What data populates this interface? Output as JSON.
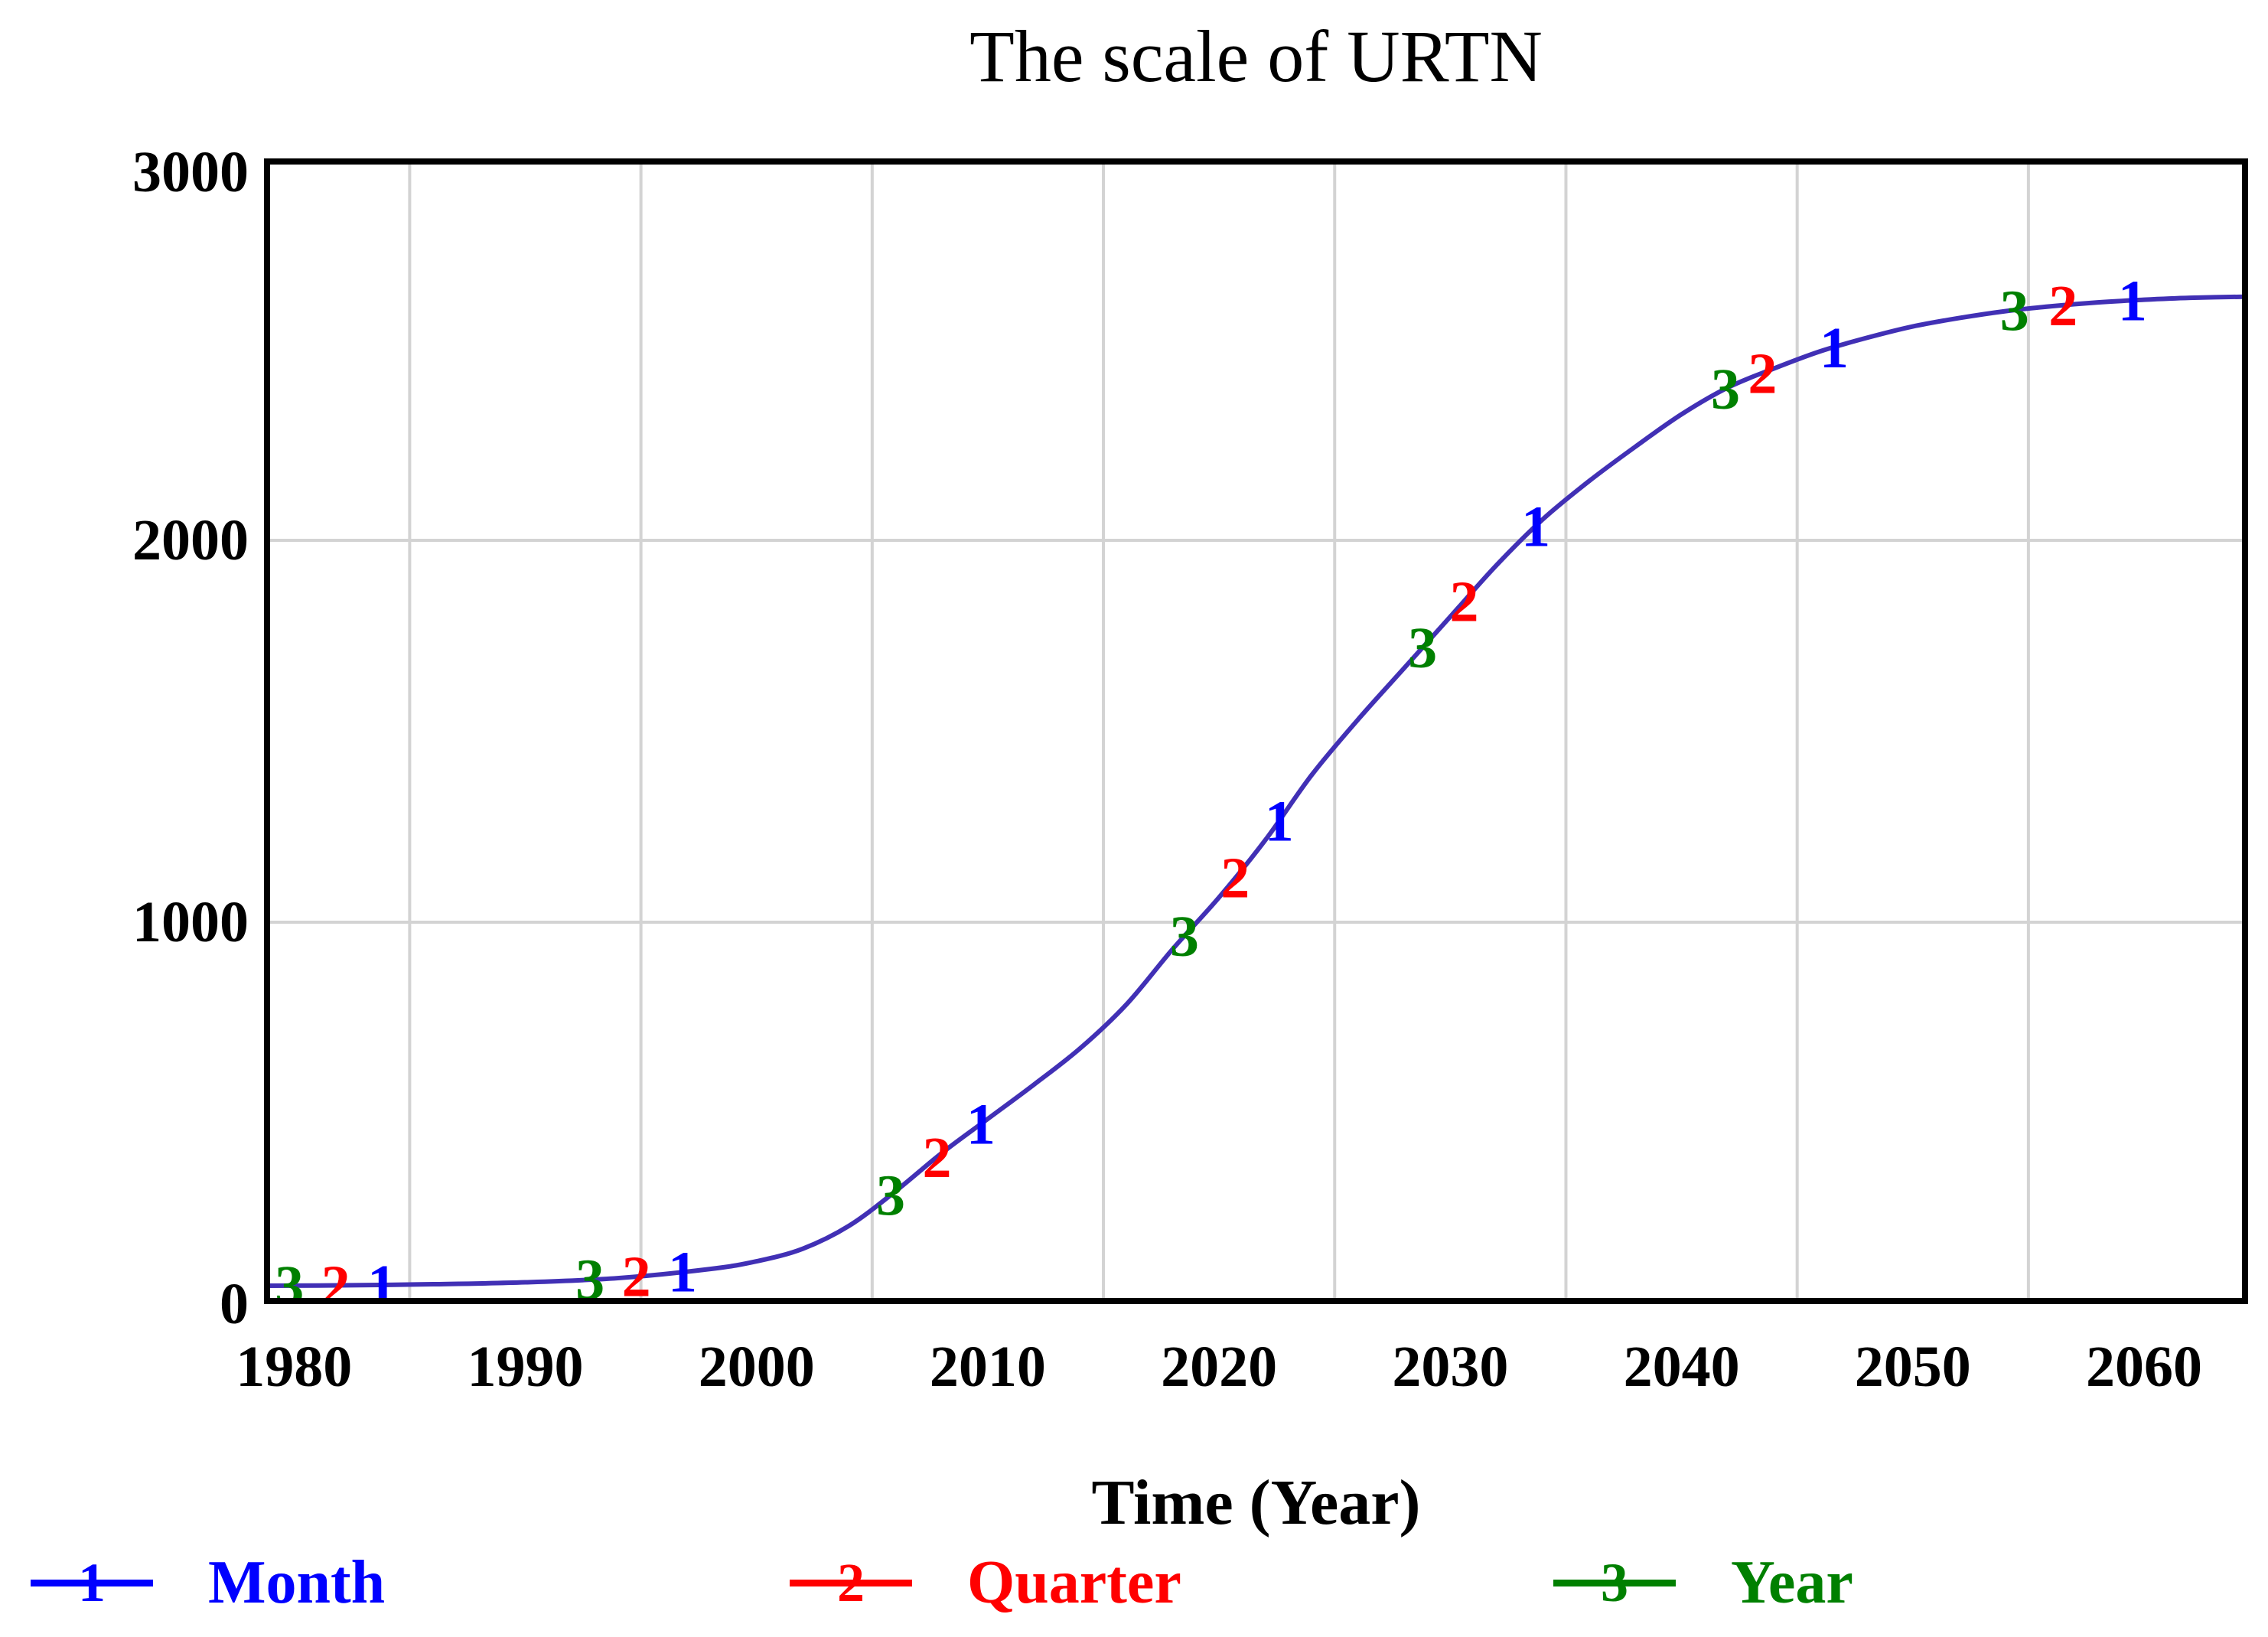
{
  "chart_data": {
    "type": "line",
    "title": "The scale of URTN",
    "xlabel": "Time (Year)",
    "ylabel": "",
    "xlim": [
      1978.7,
      2064.5
    ],
    "ylim": [
      0,
      3000
    ],
    "x_ticks": [
      1980,
      1990,
      2000,
      2010,
      2020,
      2030,
      2040,
      2050,
      2060
    ],
    "y_ticks": [
      0,
      1000,
      2000,
      3000
    ],
    "x_gridlines": [
      1985,
      1995,
      2005,
      2015,
      2025,
      2035,
      2045,
      2055
    ],
    "y_gridlines": [
      1000,
      2000
    ],
    "grid": true,
    "legend_position": "bottom",
    "colors": {
      "curve": "#4130b5",
      "grid": "#d3d3d3",
      "frame": "#000000",
      "text": "#000000"
    },
    "x": [
      1978.7,
      1982,
      1986,
      1990,
      1994,
      1998,
      2000,
      2002,
      2004,
      2006,
      2008,
      2010,
      2012,
      2014,
      2016,
      2018,
      2020,
      2022,
      2024,
      2026,
      2028,
      2030,
      2032,
      2034,
      2036,
      2038,
      2040,
      2042,
      2044,
      2046,
      2048,
      2050,
      2052,
      2054,
      2056,
      2058,
      2060,
      2062,
      2064.5
    ],
    "values": [
      48,
      49,
      52,
      57,
      68,
      92,
      112,
      145,
      205,
      295,
      395,
      485,
      575,
      670,
      785,
      930,
      1065,
      1215,
      1385,
      1530,
      1665,
      1800,
      1935,
      2055,
      2155,
      2245,
      2330,
      2400,
      2450,
      2495,
      2530,
      2560,
      2582,
      2600,
      2613,
      2623,
      2630,
      2635,
      2638
    ],
    "series": [
      {
        "name": "Month",
        "marker": "1",
        "color": "#0000ff",
        "marker_years": [
          1983.8,
          1996.8,
          2009.7,
          2022.6,
          2033.7,
          2046.6,
          2059.5
        ]
      },
      {
        "name": "Quarter",
        "marker": "2",
        "color": "#ff0000",
        "marker_years": [
          1981.8,
          1994.8,
          2007.8,
          2020.7,
          2030.6,
          2043.5,
          2056.5
        ]
      },
      {
        "name": "Year",
        "marker": "3",
        "color": "#008000",
        "marker_years": [
          1979.8,
          1992.8,
          2005.8,
          2018.5,
          2028.8,
          2041.9,
          2054.4
        ]
      }
    ]
  }
}
